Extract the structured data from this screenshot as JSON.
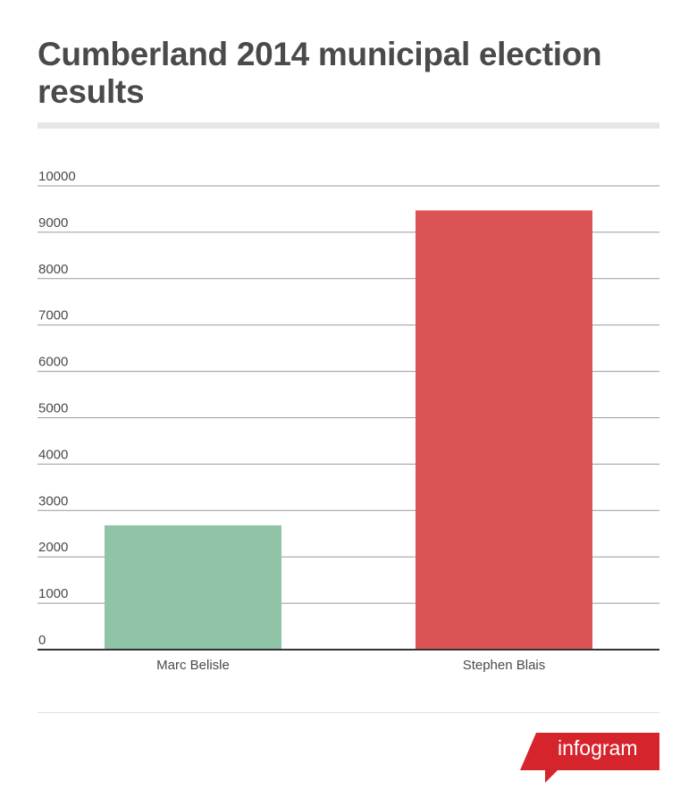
{
  "header": {
    "title": "Cumberland 2014 municipal election results"
  },
  "chart_data": {
    "type": "bar",
    "title": "Cumberland 2014 municipal election results",
    "categories": [
      "Marc Belisle",
      "Stephen Blais"
    ],
    "values": [
      2680,
      9470
    ],
    "colors": [
      "#8fc4a6",
      "#db5355"
    ],
    "ylim": [
      0,
      10000
    ],
    "yticks": [
      0,
      1000,
      2000,
      3000,
      4000,
      5000,
      6000,
      7000,
      8000,
      9000,
      10000
    ],
    "xlabel": "",
    "ylabel": "",
    "grid": true
  },
  "branding": {
    "logo_text": "infogram",
    "logo_color": "#d6242d"
  }
}
